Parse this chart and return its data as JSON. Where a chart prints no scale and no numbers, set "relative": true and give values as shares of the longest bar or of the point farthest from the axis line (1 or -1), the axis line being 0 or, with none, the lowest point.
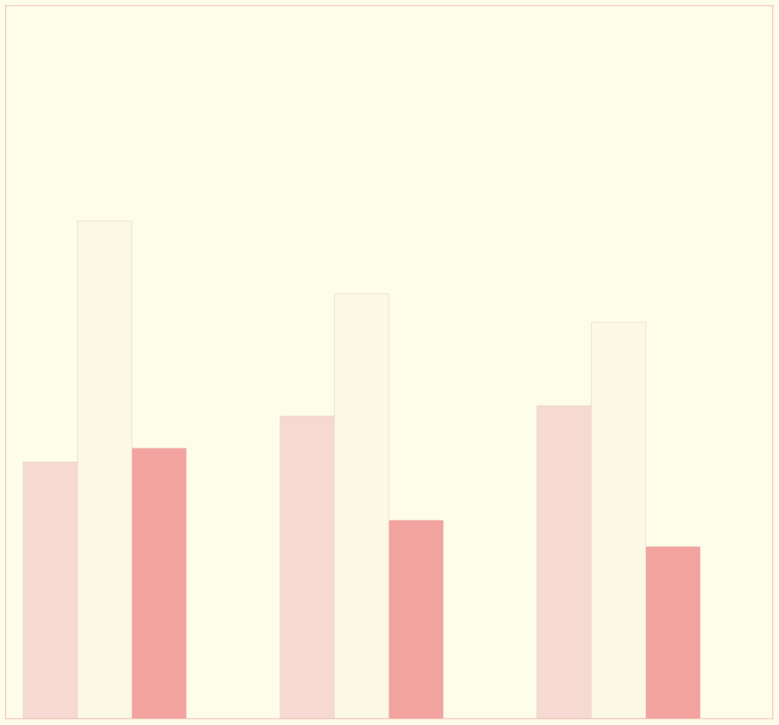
{
  "chart_data": {
    "type": "bar",
    "relative": true,
    "categories": [
      null,
      null,
      null
    ],
    "series": [
      {
        "color": "#f5d9d2",
        "values": [
          0.516,
          0.608,
          0.629
        ]
      },
      {
        "color": "#fbf8e4",
        "values": [
          1,
          0.854,
          0.797
        ]
      },
      {
        "color": "#f2a3a0",
        "values": [
          0.544,
          0.399,
          0.346
        ]
      }
    ],
    "grid": false
  }
}
